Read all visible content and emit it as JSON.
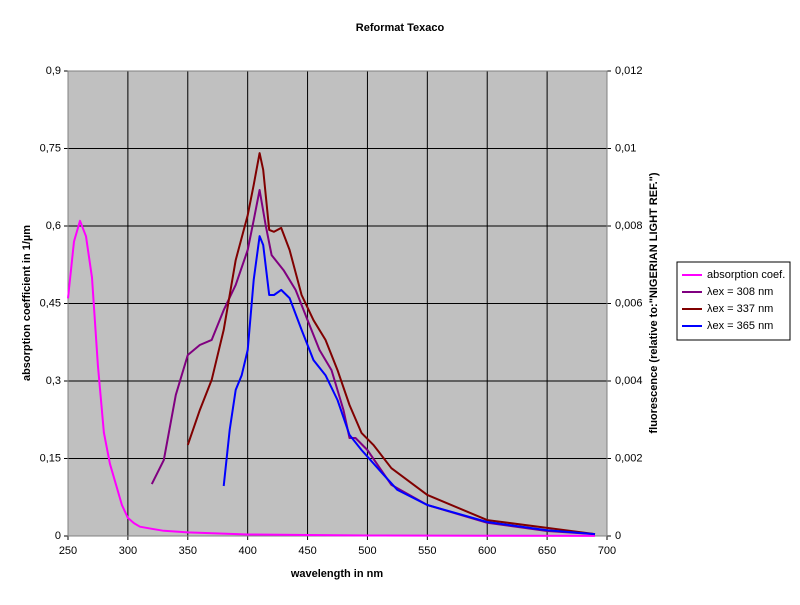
{
  "chart_data": {
    "type": "line",
    "title": "Reformat Texaco",
    "x_label": "wavelength in nm",
    "y_label": "absorption coefficient in 1/µm",
    "y2_label": "fluorescence (relative to:\"NIGERIAN LIGHT REF.\")",
    "xlim": [
      250,
      700
    ],
    "xticks": [
      250,
      300,
      350,
      400,
      450,
      500,
      550,
      600,
      650,
      700
    ],
    "ylim": [
      0,
      0.9
    ],
    "yticks": [
      0,
      {
        "value": 0.15,
        "label": "0,15"
      },
      {
        "value": 0.3,
        "label": "0,3"
      },
      {
        "value": 0.45,
        "label": "0,45"
      },
      {
        "value": 0.6,
        "label": "0,6"
      },
      {
        "value": 0.75,
        "label": "0,75"
      },
      {
        "value": 0.9,
        "label": "0,9"
      }
    ],
    "y2lim": [
      0,
      0.012
    ],
    "y2ticks": [
      0,
      {
        "value": 0.002,
        "label": "0,002"
      },
      {
        "value": 0.004,
        "label": "0,004"
      },
      {
        "value": 0.006,
        "label": "0,006"
      },
      {
        "value": 0.008,
        "label": "0,008"
      },
      {
        "value": 0.01,
        "label": "0,01"
      },
      {
        "value": 0.012,
        "label": "0,012"
      }
    ],
    "grid": true,
    "legend": "right",
    "plot_background": "#c0c0c0",
    "series": [
      {
        "name": "absorption coef.",
        "color": "#ff00ff",
        "axis": "y",
        "x": [
          250,
          255,
          260,
          265,
          270,
          275,
          280,
          285,
          290,
          295,
          300,
          305,
          310,
          320,
          330,
          350,
          400,
          450,
          500,
          600,
          690
        ],
        "values": [
          0.46,
          0.57,
          0.61,
          0.58,
          0.5,
          0.33,
          0.2,
          0.14,
          0.1,
          0.06,
          0.035,
          0.025,
          0.018,
          0.014,
          0.01,
          0.007,
          0.003,
          0.002,
          0.001,
          0.0005,
          0.0002
        ]
      },
      {
        "name": "λex = 308 nm",
        "color": "#800080",
        "axis": "y2",
        "x": [
          320,
          330,
          340,
          350,
          360,
          370,
          380,
          390,
          400,
          405,
          410,
          415,
          420,
          430,
          440,
          450,
          460,
          470,
          480,
          485,
          490,
          500,
          520,
          550,
          600,
          650,
          690
        ],
        "values": [
          0.00134,
          0.00196,
          0.00364,
          0.00467,
          0.00493,
          0.00506,
          0.00583,
          0.00648,
          0.00738,
          0.00815,
          0.00893,
          0.00803,
          0.00725,
          0.00686,
          0.00635,
          0.00557,
          0.0048,
          0.00428,
          0.00325,
          0.00253,
          0.00253,
          0.00222,
          0.00132,
          0.0008,
          0.00034,
          0.00013,
          5e-05
        ]
      },
      {
        "name": "λex = 337 nm",
        "color": "#800000",
        "axis": "y2",
        "x": [
          350,
          360,
          370,
          380,
          390,
          400,
          405,
          410,
          413,
          418,
          422,
          428,
          435,
          445,
          455,
          465,
          475,
          485,
          495,
          505,
          520,
          550,
          600,
          650,
          690
        ],
        "values": [
          0.00235,
          0.00325,
          0.00403,
          0.00532,
          0.00712,
          0.00828,
          0.00906,
          0.00988,
          0.00945,
          0.0079,
          0.00785,
          0.00795,
          0.00738,
          0.00622,
          0.00557,
          0.00506,
          0.00428,
          0.00338,
          0.00266,
          0.00235,
          0.00175,
          0.00106,
          0.00041,
          0.00021,
          5e-05
        ]
      },
      {
        "name": "λex = 365 nm",
        "color": "#0000ff",
        "axis": "y2",
        "x": [
          380,
          385,
          390,
          395,
          400,
          405,
          410,
          413,
          418,
          422,
          428,
          435,
          445,
          455,
          465,
          475,
          485,
          495,
          510,
          525,
          550,
          600,
          650,
          690
        ],
        "values": [
          0.00129,
          0.00274,
          0.00377,
          0.00415,
          0.0048,
          0.00661,
          0.00774,
          0.00751,
          0.00622,
          0.00622,
          0.00635,
          0.00614,
          0.00532,
          0.00454,
          0.00415,
          0.00351,
          0.00261,
          0.00222,
          0.0017,
          0.00119,
          0.0008,
          0.00036,
          0.00015,
          5e-05
        ]
      }
    ]
  }
}
